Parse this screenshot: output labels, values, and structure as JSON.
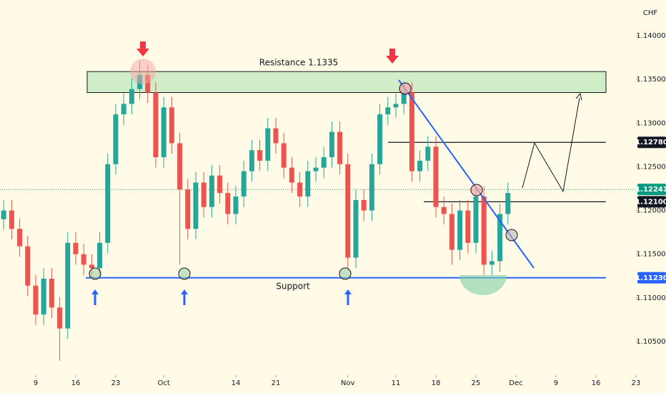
{
  "chart_data": {
    "type": "candlestick",
    "currency": "CHF",
    "x": [
      -4,
      -3,
      -2,
      -1,
      0,
      1,
      2,
      3,
      4,
      5,
      6,
      7,
      8,
      9,
      10,
      11,
      12,
      13,
      14,
      15,
      16,
      17,
      18,
      19,
      20,
      21,
      22,
      23,
      24,
      25,
      26,
      27,
      28,
      29,
      30,
      31,
      32,
      33,
      34,
      35,
      36,
      37,
      38,
      39,
      40,
      41,
      42,
      43,
      44,
      45,
      46,
      47,
      48,
      49,
      50,
      51,
      52,
      53,
      54,
      55,
      56,
      57,
      58,
      59
    ],
    "open": [
      1.119,
      1.12,
      1.1179,
      1.1159,
      1.1114,
      1.1081,
      1.1122,
      1.1089,
      1.1065,
      1.1163,
      1.115,
      1.1138,
      1.1134,
      1.1163,
      1.1253,
      1.131,
      1.1322,
      1.1339,
      1.1355,
      1.1335,
      1.1261,
      1.1318,
      1.1277,
      1.1224,
      1.1179,
      1.1232,
      1.1204,
      1.124,
      1.122,
      1.1196,
      1.1216,
      1.1245,
      1.1269,
      1.1257,
      1.1294,
      1.1277,
      1.1249,
      1.1232,
      1.1216,
      1.1245,
      1.1249,
      1.1261,
      1.129,
      1.1253,
      1.1146,
      1.1212,
      1.12,
      1.1253,
      1.131,
      1.1318,
      1.1322,
      1.1335,
      1.1245,
      1.1257,
      1.1273,
      1.1204,
      1.1196,
      1.1155,
      1.12,
      1.1163,
      1.1216,
      1.1138,
      1.1142,
      1.1196
    ],
    "high": [
      1.1212,
      1.1212,
      1.1191,
      1.1171,
      1.1126,
      1.1134,
      1.1134,
      1.1101,
      1.1175,
      1.1175,
      1.1162,
      1.115,
      1.1175,
      1.1265,
      1.1322,
      1.1334,
      1.1351,
      1.1371,
      1.1367,
      1.1347,
      1.133,
      1.133,
      1.1289,
      1.1236,
      1.1244,
      1.1244,
      1.1252,
      1.1252,
      1.1232,
      1.1228,
      1.1257,
      1.1281,
      1.1281,
      1.1306,
      1.1306,
      1.1289,
      1.1261,
      1.1244,
      1.1257,
      1.1261,
      1.1273,
      1.1302,
      1.1302,
      1.1265,
      1.1224,
      1.1224,
      1.1265,
      1.1322,
      1.133,
      1.1334,
      1.1347,
      1.1347,
      1.1269,
      1.1285,
      1.1285,
      1.1216,
      1.1208,
      1.1212,
      1.1212,
      1.1228,
      1.1228,
      1.1154,
      1.1208,
      1.1232
    ],
    "low": [
      1.1178,
      1.1167,
      1.1147,
      1.1102,
      1.1069,
      1.1069,
      1.1077,
      1.1028,
      1.1053,
      1.1138,
      1.1126,
      1.1122,
      1.1122,
      1.1151,
      1.1241,
      1.1298,
      1.131,
      1.1327,
      1.1323,
      1.1249,
      1.1249,
      1.1265,
      1.1138,
      1.1167,
      1.1167,
      1.1192,
      1.1192,
      1.1208,
      1.1184,
      1.1184,
      1.1204,
      1.1233,
      1.1245,
      1.1245,
      1.1265,
      1.1237,
      1.122,
      1.1204,
      1.1204,
      1.1233,
      1.1237,
      1.1249,
      1.1241,
      1.1134,
      1.1134,
      1.1188,
      1.1188,
      1.1241,
      1.1298,
      1.1306,
      1.131,
      1.1233,
      1.1233,
      1.1245,
      1.1192,
      1.1184,
      1.1138,
      1.1143,
      1.1151,
      1.1151,
      1.1126,
      1.1126,
      1.113,
      1.1184
    ],
    "close": [
      1.12,
      1.1179,
      1.1159,
      1.1114,
      1.1081,
      1.1122,
      1.1089,
      1.1065,
      1.1163,
      1.115,
      1.1138,
      1.1134,
      1.1163,
      1.1253,
      1.131,
      1.1322,
      1.1339,
      1.1355,
      1.1335,
      1.1261,
      1.1318,
      1.1277,
      1.1224,
      1.1179,
      1.1232,
      1.1204,
      1.124,
      1.122,
      1.1196,
      1.1216,
      1.1245,
      1.1269,
      1.1257,
      1.1294,
      1.1277,
      1.1249,
      1.1232,
      1.1216,
      1.1245,
      1.1249,
      1.1261,
      1.129,
      1.1253,
      1.1146,
      1.1212,
      1.12,
      1.1253,
      1.131,
      1.1318,
      1.1322,
      1.1335,
      1.1245,
      1.1257,
      1.1273,
      1.1204,
      1.1196,
      1.1155,
      1.12,
      1.1163,
      1.1216,
      1.1138,
      1.1142,
      1.1196,
      1.122
    ],
    "up_color": "#26a69a",
    "down_color": "#ef5350",
    "xlim": [
      -4.46,
      75
    ],
    "xticks": [
      {
        "value": 0,
        "label": "9"
      },
      {
        "value": 5,
        "label": "16"
      },
      {
        "value": 10,
        "label": "23"
      },
      {
        "value": 16,
        "label": "Oct"
      },
      {
        "value": 25,
        "label": "14"
      },
      {
        "value": 30,
        "label": "21"
      },
      {
        "value": 39,
        "label": "Nov"
      },
      {
        "value": 45,
        "label": "11"
      },
      {
        "value": 50,
        "label": "18"
      },
      {
        "value": 55,
        "label": "25"
      },
      {
        "value": 60,
        "label": "Dec"
      },
      {
        "value": 65,
        "label": "9"
      },
      {
        "value": 70,
        "label": "16"
      },
      {
        "value": 75,
        "label": "23"
      }
    ],
    "ylim": [
      1.10116,
      1.14409
    ],
    "yticks": [
      {
        "value": 1.14,
        "label": "1.14000"
      },
      {
        "value": 1.135,
        "label": "1.13500"
      },
      {
        "value": 1.13,
        "label": "1.13000"
      },
      {
        "value": 1.125,
        "label": "1.12500"
      },
      {
        "value": 1.12,
        "label": "1.12000"
      },
      {
        "value": 1.115,
        "label": "1.11500"
      },
      {
        "value": 1.11,
        "label": "1.11000"
      },
      {
        "value": 1.105,
        "label": "1.10500"
      }
    ],
    "price_labels": [
      {
        "value": 1.1278,
        "label": "1.12780",
        "color": "#131722"
      },
      {
        "value": 1.121,
        "label": "1.12100",
        "color": "#131722"
      },
      {
        "value": 1.12241,
        "label": "1.12241",
        "color": "#089981"
      },
      {
        "value": 1.1123,
        "label": "1.11230",
        "color": "#2962ff"
      }
    ],
    "resistance": {
      "label": "Resistance 1.1335",
      "top": 1.1359,
      "bottom": 1.1335
    },
    "support": {
      "label": "Support",
      "value": 1.1123
    },
    "last_price": 1.12241
  }
}
